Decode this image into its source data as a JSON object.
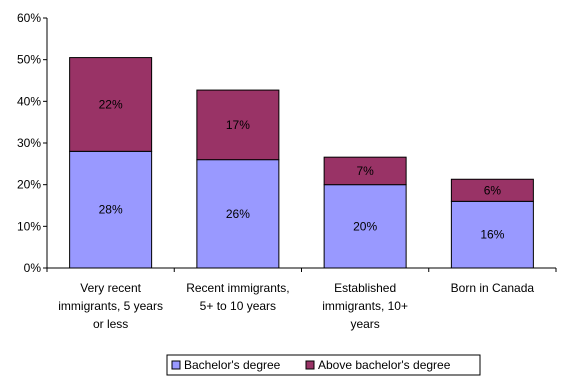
{
  "chart_data": {
    "type": "bar",
    "stacked": true,
    "categories": [
      [
        "Very recent",
        "immigrants, 5 years",
        "or less"
      ],
      [
        "Recent immigrants,",
        "5+ to 10 years"
      ],
      [
        "Established",
        "immigrants, 10+",
        "years"
      ],
      [
        "Born in Canada"
      ]
    ],
    "series": [
      {
        "name": "Bachelor's degree",
        "values": [
          28,
          26,
          20,
          16
        ],
        "labels": [
          "28%",
          "26%",
          "20%",
          "16%"
        ],
        "color": "#9999ff"
      },
      {
        "name": "Above bachelor's degree",
        "values": [
          22,
          17,
          7,
          6
        ],
        "labels": [
          "22%",
          "17%",
          "7%",
          "6%"
        ],
        "color": "#993366"
      }
    ],
    "stack_totals": [
      50.5,
      42.7,
      26.6,
      21.3
    ],
    "yticks": [
      "0%",
      "10%",
      "20%",
      "30%",
      "40%",
      "50%",
      "60%"
    ],
    "ylim": [
      0,
      60
    ],
    "grid": false,
    "legend_position": "bottom"
  }
}
